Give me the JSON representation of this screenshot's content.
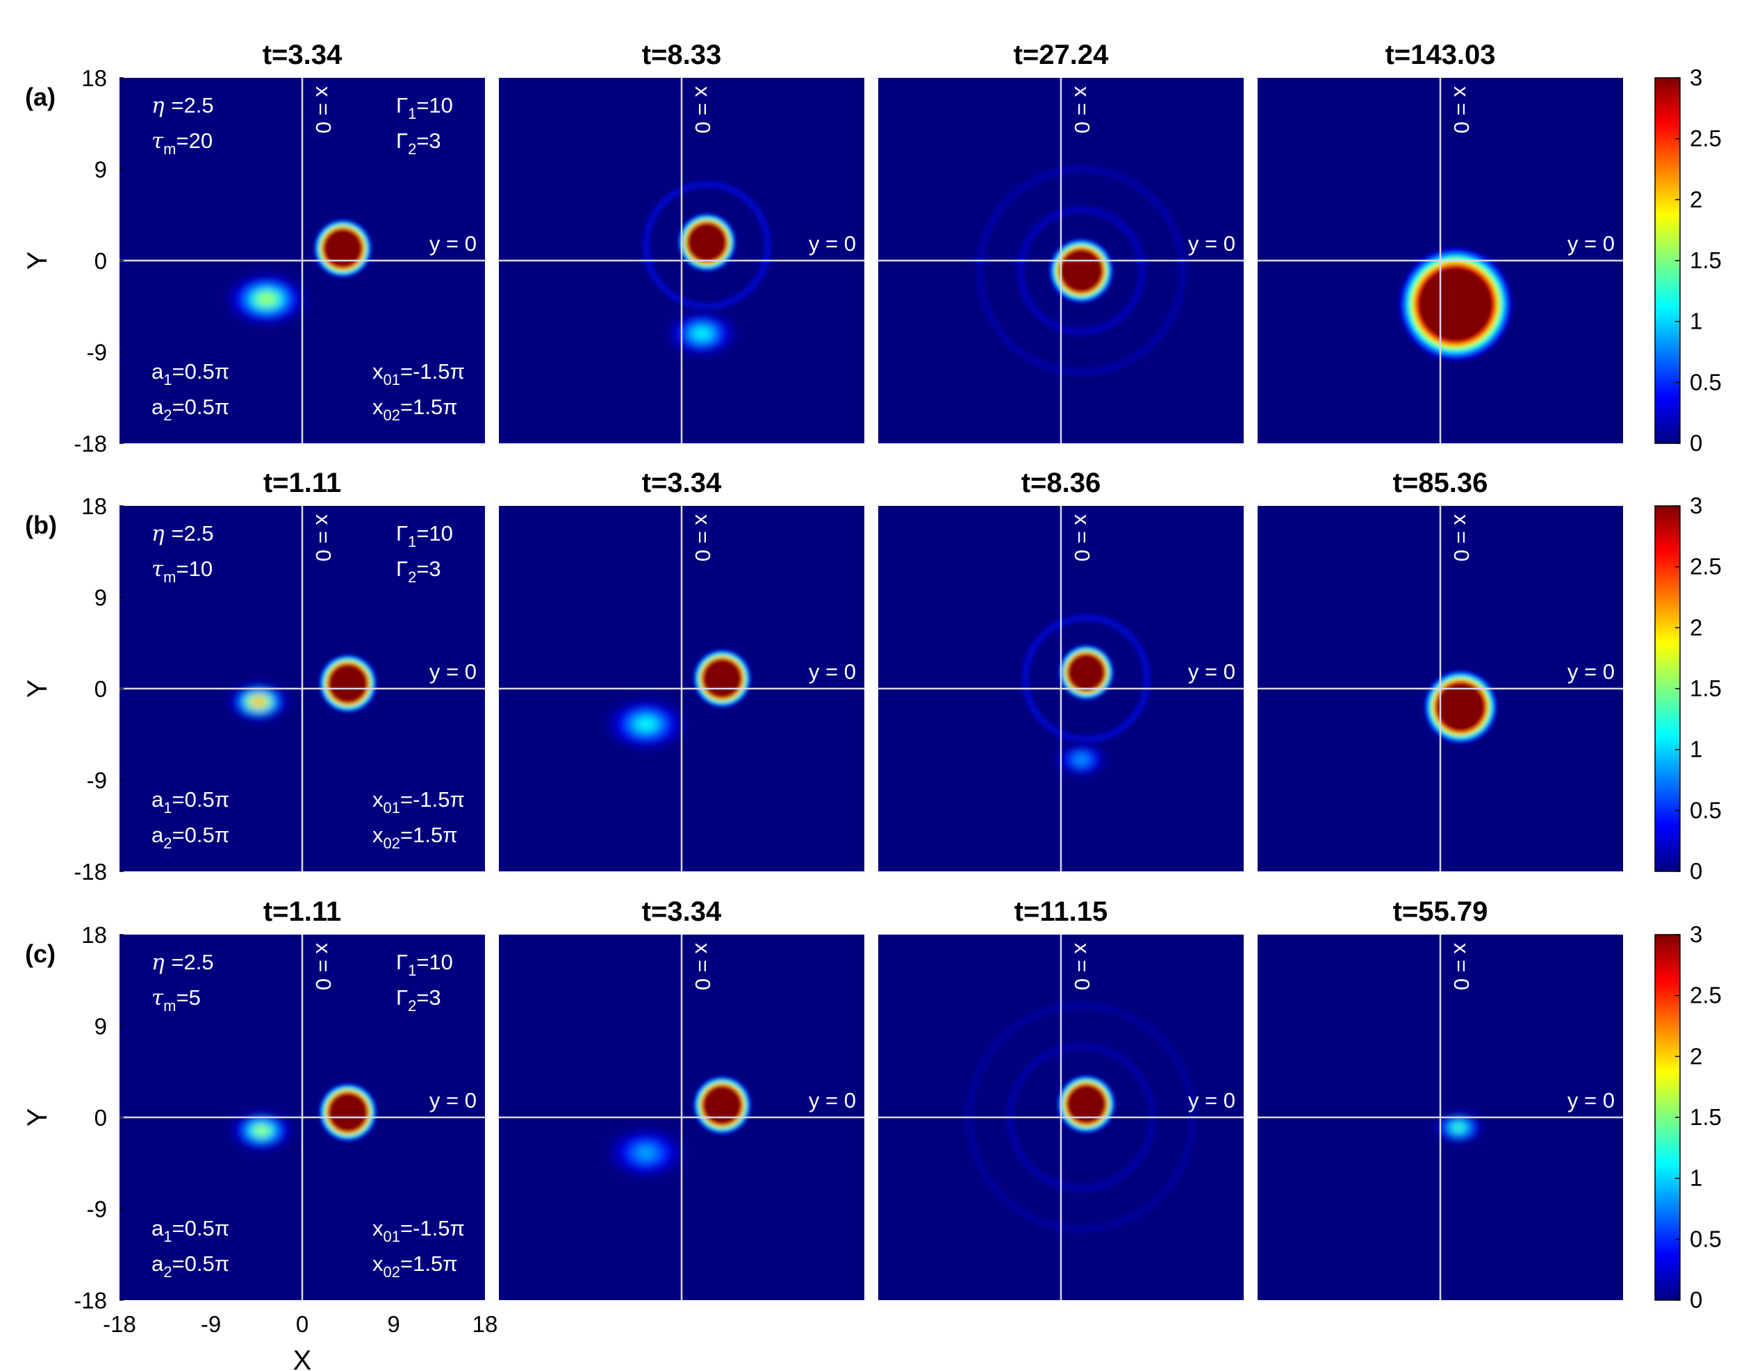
{
  "colormap": {
    "name": "jet",
    "stops": [
      "#00007f",
      "#0000ff",
      "#007fff",
      "#00ffff",
      "#7fff7f",
      "#ffff00",
      "#ff7f00",
      "#ff0000",
      "#7f0000"
    ]
  },
  "chart_data": {
    "type": "heatmap",
    "xlabel": "X",
    "ylabel": "Y",
    "xlim": [
      -18,
      18
    ],
    "ylim": [
      -18,
      18
    ],
    "xticks": [
      "-18",
      "-9",
      "0",
      "9",
      "18"
    ],
    "yticks": [
      "18",
      "9",
      "0",
      "-9",
      "-18"
    ],
    "colorbar": {
      "range": [
        0,
        3
      ],
      "ticks": [
        "3",
        "2.5",
        "2",
        "1.5",
        "1",
        "0.5",
        "0"
      ]
    },
    "reference_lines": {
      "vertical": "x = 0",
      "horizontal": "y = 0"
    },
    "rows": [
      {
        "label": "(a)",
        "params": {
          "eta": "=2.5",
          "tau_m": "=20",
          "Gamma1": "=10",
          "Gamma2": "=3",
          "a1": "=0.5π",
          "a2": "=0.5π",
          "x01": "=-1.5π",
          "x02": "=1.5π"
        },
        "panels": [
          {
            "title": "t=3.34",
            "blobs": [
              {
                "x": 4.0,
                "y": 1.2,
                "r": 1.9,
                "peak": 3
              },
              {
                "x": -3.5,
                "y": -3.8,
                "r": 2.2,
                "peak": 1.7
              }
            ],
            "rings": []
          },
          {
            "title": "t=8.33",
            "blobs": [
              {
                "x": 2.5,
                "y": 1.8,
                "r": 1.9,
                "peak": 3
              },
              {
                "x": 2.0,
                "y": -7.2,
                "r": 2.0,
                "peak": 1.2
              }
            ],
            "rings": [
              {
                "x": 2.5,
                "y": 1.5,
                "r": 6,
                "peak": 0.4
              }
            ]
          },
          {
            "title": "t=27.24",
            "blobs": [
              {
                "x": 2.0,
                "y": -1.0,
                "r": 2.1,
                "peak": 3
              }
            ],
            "rings": [
              {
                "x": 2.0,
                "y": -1.0,
                "r": 6,
                "peak": 0.3
              },
              {
                "x": 2.0,
                "y": -1.0,
                "r": 10,
                "peak": 0.2
              }
            ]
          },
          {
            "title": "t=143.03",
            "blobs": [
              {
                "x": 1.5,
                "y": -4.3,
                "r": 3.7,
                "peak": 3
              }
            ],
            "rings": []
          }
        ]
      },
      {
        "label": "(b)",
        "params": {
          "eta": "=2.5",
          "tau_m": "=10",
          "Gamma1": "=10",
          "Gamma2": "=3",
          "a1": "=0.5π",
          "a2": "=0.5π",
          "x01": "=-1.5π",
          "x02": "=1.5π"
        },
        "panels": [
          {
            "title": "t=1.11",
            "blobs": [
              {
                "x": 4.5,
                "y": 0.5,
                "r": 1.9,
                "peak": 3
              },
              {
                "x": -4.3,
                "y": -1.3,
                "r": 1.6,
                "peak": 2.3
              }
            ],
            "rings": []
          },
          {
            "title": "t=3.34",
            "blobs": [
              {
                "x": 4.0,
                "y": 1.0,
                "r": 1.9,
                "peak": 3
              },
              {
                "x": -3.5,
                "y": -3.5,
                "r": 2.3,
                "peak": 1.2
              }
            ],
            "rings": []
          },
          {
            "title": "t=8.36",
            "blobs": [
              {
                "x": 2.5,
                "y": 1.6,
                "r": 1.8,
                "peak": 3
              },
              {
                "x": 2.0,
                "y": -7.0,
                "r": 1.5,
                "peak": 0.9
              }
            ],
            "rings": [
              {
                "x": 2.5,
                "y": 1.0,
                "r": 6,
                "peak": 0.4
              }
            ]
          },
          {
            "title": "t=85.36",
            "blobs": [
              {
                "x": 2.0,
                "y": -1.8,
                "r": 2.4,
                "peak": 3
              }
            ],
            "rings": []
          }
        ]
      },
      {
        "label": "(c)",
        "params": {
          "eta": "=2.5",
          "tau_m": "=5",
          "Gamma1": "=10",
          "Gamma2": "=3",
          "a1": "=0.5π",
          "a2": "=0.5π",
          "x01": "=-1.5π",
          "x02": "=1.5π"
        },
        "panels": [
          {
            "title": "t=1.11",
            "blobs": [
              {
                "x": 4.5,
                "y": 0.5,
                "r": 1.9,
                "peak": 3
              },
              {
                "x": -4.0,
                "y": -1.3,
                "r": 1.7,
                "peak": 1.7
              }
            ],
            "rings": []
          },
          {
            "title": "t=3.34",
            "blobs": [
              {
                "x": 4.0,
                "y": 1.2,
                "r": 1.9,
                "peak": 3
              },
              {
                "x": -3.5,
                "y": -3.5,
                "r": 2.3,
                "peak": 0.9
              }
            ],
            "rings": []
          },
          {
            "title": "t=11.15",
            "blobs": [
              {
                "x": 2.5,
                "y": 1.3,
                "r": 1.9,
                "peak": 3
              }
            ],
            "rings": [
              {
                "x": 2.0,
                "y": 0.0,
                "r": 7,
                "peak": 0.2
              },
              {
                "x": 2.0,
                "y": 0.0,
                "r": 11,
                "peak": 0.15
              }
            ]
          },
          {
            "title": "t=55.79",
            "blobs": [
              {
                "x": 1.8,
                "y": -1.0,
                "r": 1.4,
                "peak": 1.4
              }
            ],
            "rings": []
          }
        ]
      }
    ]
  }
}
